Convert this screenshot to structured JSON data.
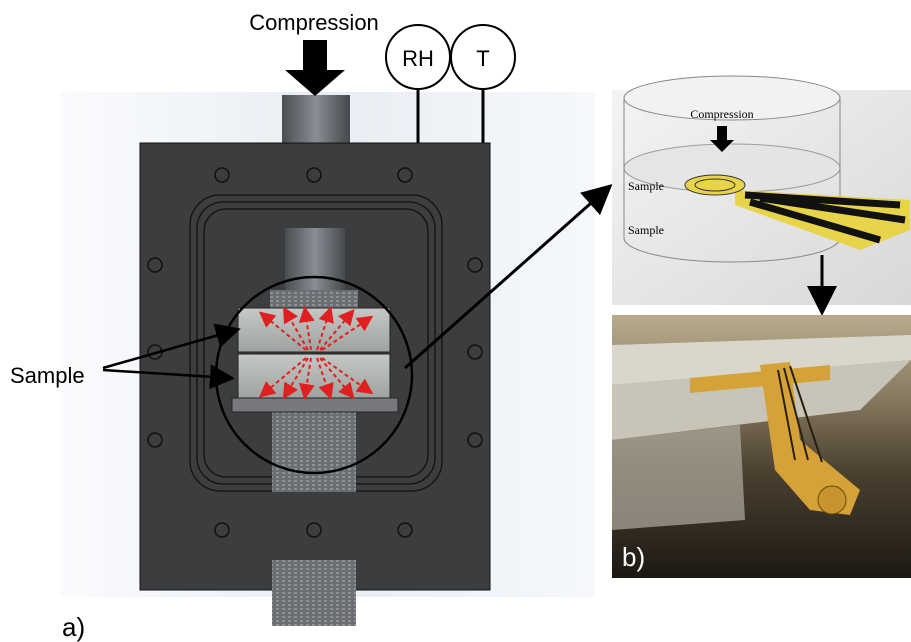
{
  "left_panel": {
    "compression_label": "Compression",
    "rh_label": "RH",
    "t_label": "T",
    "sample_label": "Sample",
    "panel_label": "a)"
  },
  "right_top_panel": {
    "compression_label": "Compression",
    "upper_sample_label": "Sample",
    "lower_sample_label": "Sample"
  },
  "right_bottom_panel": {
    "panel_label": "b)"
  }
}
